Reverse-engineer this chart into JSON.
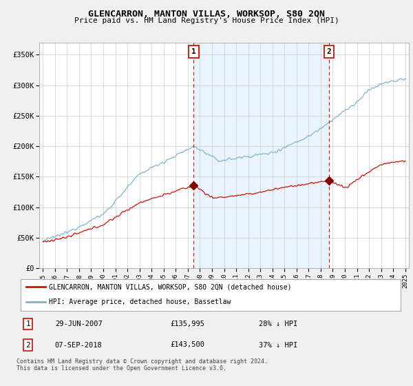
{
  "title": "GLENCARRON, MANTON VILLAS, WORKSOP, S80 2QN",
  "subtitle": "Price paid vs. HM Land Registry's House Price Index (HPI)",
  "ylabel_ticks": [
    "£0",
    "£50K",
    "£100K",
    "£150K",
    "£200K",
    "£250K",
    "£300K",
    "£350K"
  ],
  "ytick_values": [
    0,
    50000,
    100000,
    150000,
    200000,
    250000,
    300000,
    350000
  ],
  "ylim": [
    0,
    370000
  ],
  "xlim_start": 1994.7,
  "xlim_end": 2025.3,
  "hpi_color": "#7fb3d3",
  "hpi_fill_color": "#ddeeff",
  "price_color": "#cc1100",
  "vline_color": "#dd2200",
  "sale1_x": 2007.49,
  "sale1_y": 135995,
  "sale2_x": 2018.68,
  "sale2_y": 143500,
  "legend_line1": "GLENCARRON, MANTON VILLAS, WORKSOP, S80 2QN (detached house)",
  "legend_line2": "HPI: Average price, detached house, Bassetlaw",
  "background_color": "#f0f0f0",
  "plot_bg_color": "#ffffff",
  "grid_color": "#cccccc"
}
